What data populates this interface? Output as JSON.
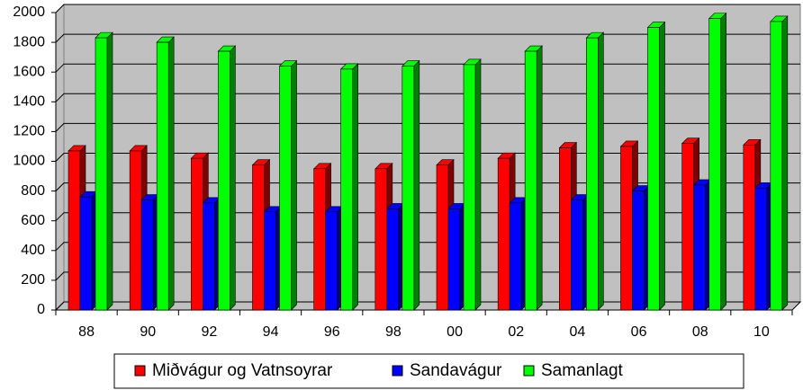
{
  "chart_data": {
    "type": "bar",
    "categories": [
      "88",
      "90",
      "92",
      "94",
      "96",
      "98",
      "00",
      "02",
      "04",
      "06",
      "08",
      "10"
    ],
    "series": [
      {
        "name": "Miðvágur og Vatnsoyrar",
        "color": "#ff0000",
        "side": "#800000",
        "values": [
          1070,
          1070,
          1020,
          975,
          950,
          950,
          975,
          1020,
          1090,
          1100,
          1120,
          1110
        ]
      },
      {
        "name": "Sandavágur",
        "color": "#0000ff",
        "side": "#000080",
        "values": [
          760,
          740,
          720,
          660,
          660,
          680,
          680,
          720,
          740,
          800,
          840,
          820
        ]
      },
      {
        "name": "Samanlagt",
        "color": "#00ff00",
        "side": "#008000",
        "values": [
          1830,
          1800,
          1740,
          1640,
          1620,
          1640,
          1650,
          1740,
          1830,
          1900,
          1960,
          1940
        ]
      }
    ],
    "ylim": [
      0,
      2000
    ],
    "yticks": [
      0,
      200,
      400,
      600,
      800,
      1000,
      1200,
      1400,
      1600,
      1800,
      2000
    ],
    "grid": true,
    "legend": "bottom"
  }
}
